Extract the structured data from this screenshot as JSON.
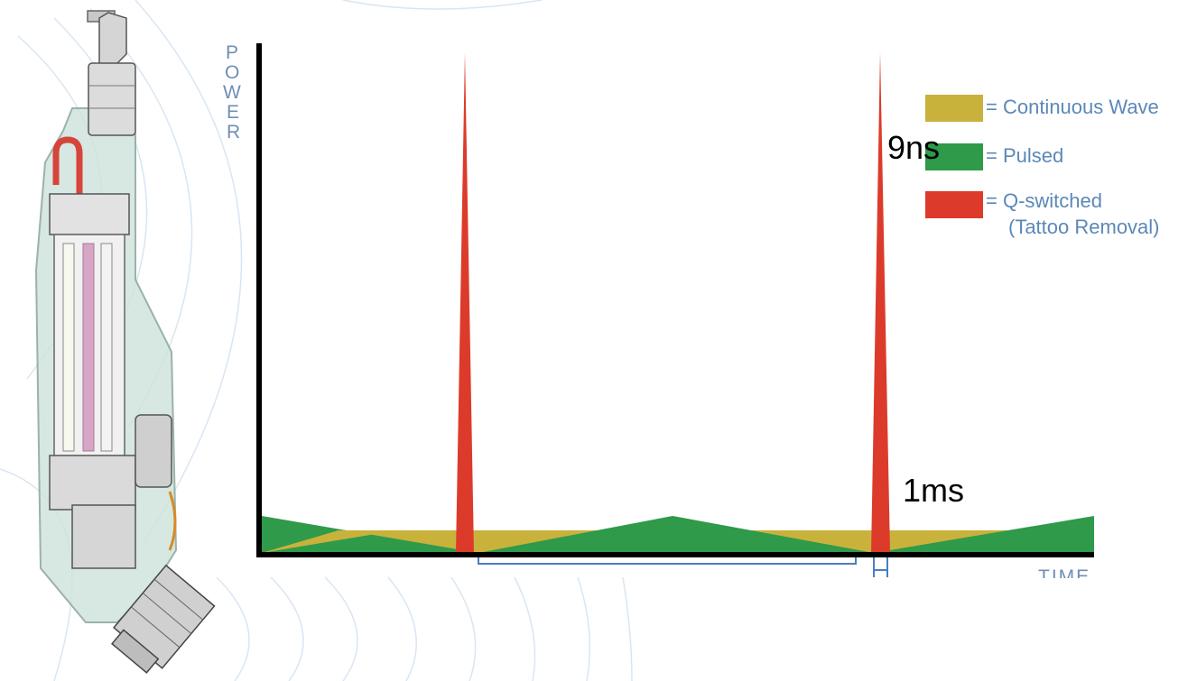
{
  "axis": {
    "y_label_letters": [
      "P",
      "O",
      "W",
      "E",
      "R"
    ],
    "x_label": "TIME"
  },
  "legend": [
    {
      "label": "= Continuous Wave",
      "color": "#c9b23c"
    },
    {
      "label": "= Pulsed",
      "color": "#2e9a4a"
    },
    {
      "label": "= Q-switched",
      "label2": "(Tattoo Removal)",
      "color": "#dc3b2b"
    }
  ],
  "annotations": {
    "top": "9ns",
    "bottom": "1ms"
  },
  "colors": {
    "continuous": "#c9b23c",
    "pulsed": "#2e9a4a",
    "qswitched": "#dc3b2b",
    "axis": "#000000",
    "bracket": "#4a7ec0",
    "device_body": "#cfe4dc"
  },
  "device_image": "laser-handpiece-cutaway-icon"
}
